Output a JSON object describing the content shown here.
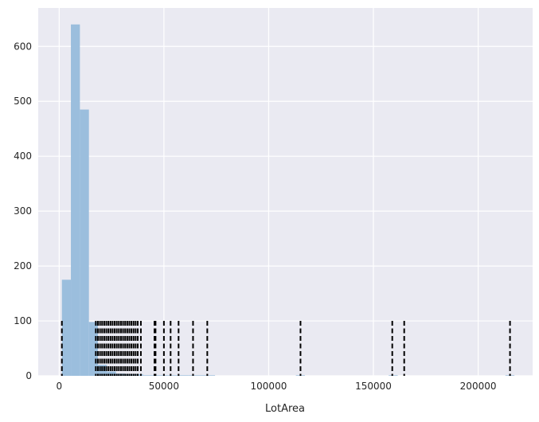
{
  "chart_data": {
    "type": "bar",
    "title": "",
    "xlabel": "LotArea",
    "ylabel": "",
    "xlim": [
      -10000,
      226000
    ],
    "ylim": [
      0,
      670
    ],
    "grid": true,
    "x_ticks": [
      0,
      50000,
      100000,
      150000,
      200000
    ],
    "y_ticks": [
      0,
      100,
      200,
      300,
      400,
      500,
      600
    ],
    "x_tick_labels": [
      "0",
      "50000",
      "100000",
      "150000",
      "200000"
    ],
    "y_tick_labels": [
      "0",
      "100",
      "200",
      "300",
      "400",
      "500",
      "600"
    ],
    "histogram": {
      "bin_edges": [
        1300,
        5600,
        9900,
        14200,
        18500,
        22800,
        27100,
        31400,
        35700,
        40000,
        44300,
        48600,
        52900,
        57200,
        61500,
        65800,
        70100,
        74400,
        113000,
        117300,
        157300,
        161600,
        165900,
        213000,
        217300
      ],
      "counts": [
        175,
        640,
        485,
        98,
        20,
        8,
        4,
        3,
        3,
        1,
        1,
        1,
        1,
        1,
        1,
        1,
        1,
        0,
        1,
        0,
        1,
        0,
        0,
        1
      ],
      "color": "#9bbedd"
    },
    "rug": {
      "height": 100,
      "color": "#000000",
      "style": "dashed",
      "values": [
        1300,
        17500,
        18500,
        19500,
        20500,
        21500,
        22500,
        23500,
        24500,
        25500,
        26500,
        27500,
        28500,
        29500,
        30500,
        31500,
        32500,
        33500,
        34500,
        35500,
        36500,
        37500,
        39000,
        45500,
        46000,
        50000,
        53200,
        57000,
        63900,
        70700,
        115200,
        159000,
        164700,
        215200
      ]
    },
    "colors": {
      "background": "#eaeaf2",
      "grid": "#ffffff",
      "text": "#262626"
    }
  }
}
